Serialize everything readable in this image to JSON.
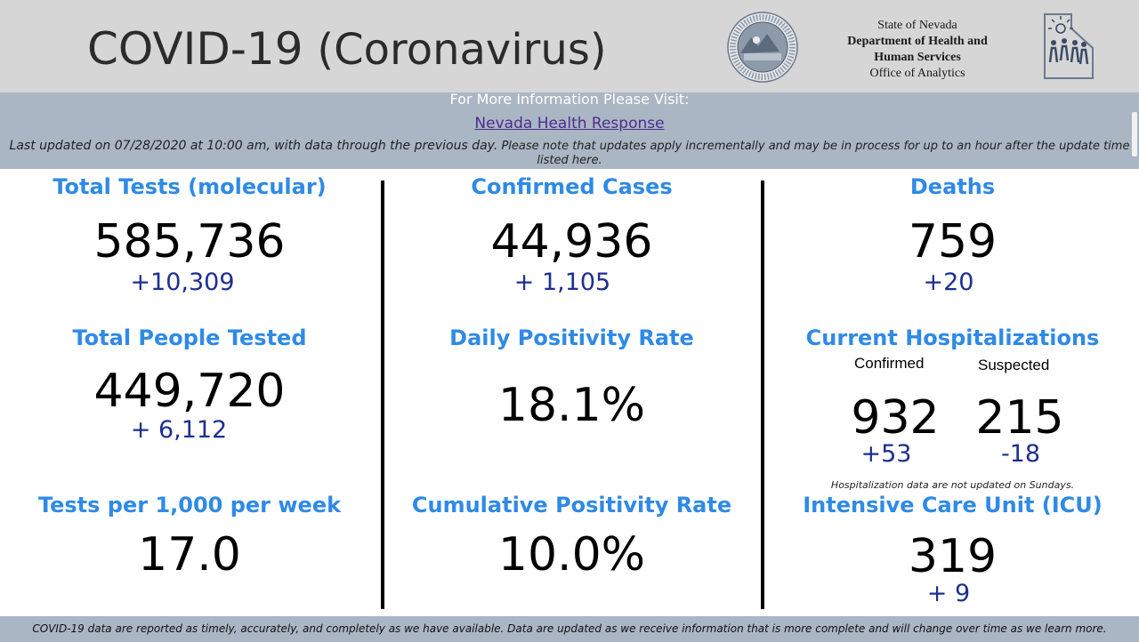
{
  "header": {
    "title_main": "COVID-19",
    "title_paren": "(Coronavirus)",
    "agency": {
      "line1": "State of Nevada",
      "line2": "Department of Health and",
      "line3": "Human Services",
      "line4": "Office of Analytics"
    },
    "seal_icon": "nevada-state-seal",
    "logo_icon": "nevada-dhhs-logo"
  },
  "info": {
    "visit": "For More Information Please Visit:",
    "link": "Nevada Health Response",
    "updated_lead": "Last updated on 07/28/2020 at 10:00 am, with data through the previous day.",
    "updated_note": "Please note that updates apply incrementally and may be in process for up to an hour after the update time listed here."
  },
  "stats": {
    "total_tests": {
      "label": "Total Tests (molecular)",
      "value": "585,736",
      "delta": "+10,309"
    },
    "confirmed_cases": {
      "label": "Confirmed Cases",
      "value": "44,936",
      "delta": "+ 1,105"
    },
    "deaths": {
      "label": "Deaths",
      "value": "759",
      "delta": "+20"
    },
    "people_tested": {
      "label": "Total People Tested",
      "value": "449,720",
      "delta": "+  6,112"
    },
    "daily_positivity": {
      "label": "Daily Positivity Rate",
      "value": "18.1%"
    },
    "hospitalizations": {
      "label": "Current Hospitalizations",
      "confirmed_label": "Confirmed",
      "suspected_label": "Suspected",
      "confirmed_value": "932",
      "confirmed_delta": "+53",
      "suspected_value": "215",
      "suspected_delta": "-18",
      "note": "Hospitalization data are not updated on Sundays."
    },
    "tests_per_1000": {
      "label": "Tests per 1,000 per week",
      "value": "17.0"
    },
    "cumulative_positivity": {
      "label": "Cumulative Positivity Rate",
      "value": "10.0%"
    },
    "icu": {
      "label": "Intensive Care Unit (ICU)",
      "value": "319",
      "delta": "+ 9"
    }
  },
  "footer": {
    "text": "COVID-19 data are reported as timely, accurately, and completely as we have available.  Data are updated as we receive information that is more complete and will change over time as we learn more."
  },
  "colors": {
    "label_blue": "#2f8ae6",
    "delta_navy": "#1d2f91",
    "bar_gray": "#aab6c3",
    "header_gray": "#d6d6d6"
  }
}
